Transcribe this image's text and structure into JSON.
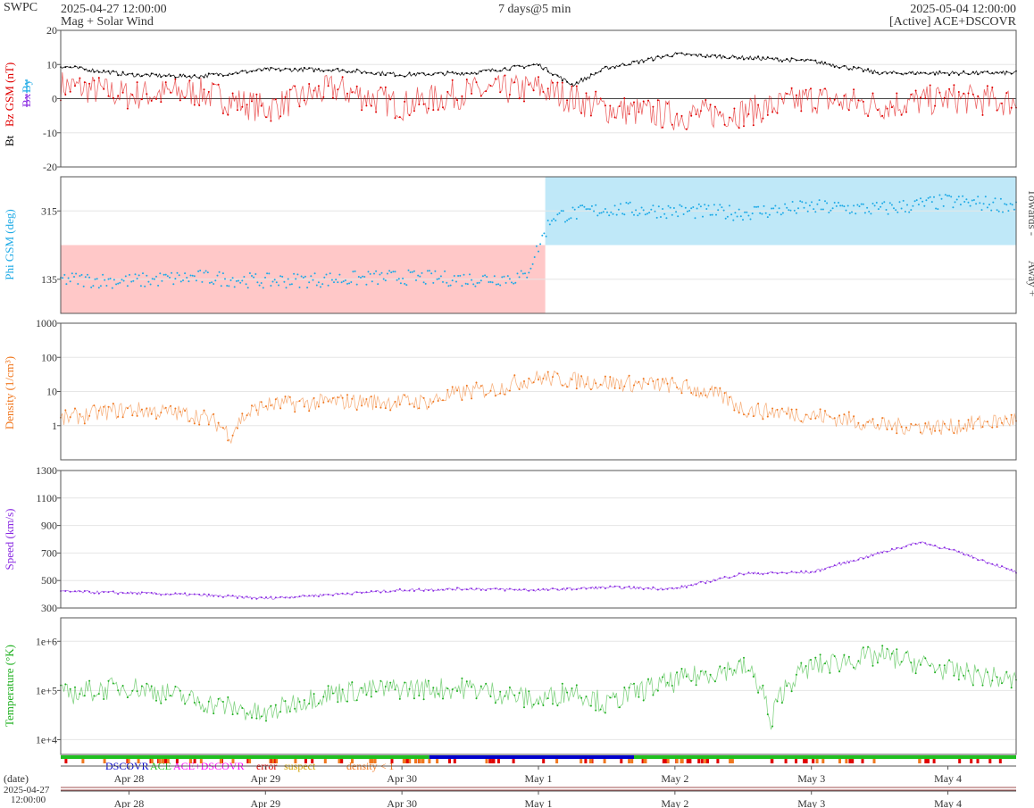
{
  "header": {
    "brand": "SWPC",
    "start_time": "2025-04-27 12:00:00",
    "subtitle": "Mag + Solar Wind",
    "span": "7 days@5 min",
    "end_time": "2025-05-04 12:00:00",
    "source": "[Active] ACE+DSCOVR"
  },
  "colors": {
    "bt": "#000000",
    "bz": "#e00000",
    "bx": "#8a2be2",
    "by": "#1eaae6",
    "phi": "#1eaae6",
    "density": "#f07820",
    "speed": "#8a2be2",
    "temperature": "#20b020",
    "away_fill": "#ffc8c8",
    "towards_fill": "#bfe8f8",
    "dscovr": "#0000cc",
    "ace": "#20c020",
    "ace_dscovr": "#ff00ff",
    "error": "#e00000",
    "suspect": "#f0c000",
    "density_lt1": "#f07820"
  },
  "chart_data": [
    {
      "id": "mag",
      "type": "line",
      "ylabel_parts": {
        "bt": "Bt",
        "bz": "Bz GSM (nT)",
        "bx": "Bx",
        "by": "By"
      },
      "ylim": [
        -20,
        20
      ],
      "yticks": [
        "20",
        "10",
        "0",
        "-10",
        "-20"
      ],
      "ytick_values": [
        20,
        10,
        0,
        -10,
        -20
      ],
      "x_days": [
        0,
        0.5,
        1,
        1.5,
        2,
        2.5,
        3,
        3.5,
        3.75,
        4,
        4.5,
        5,
        5.5,
        6,
        6.5,
        7
      ],
      "series": [
        {
          "name": "Bt",
          "values": [
            9.5,
            7,
            6.5,
            8.5,
            8.5,
            7,
            7.5,
            10,
            4,
            9,
            13,
            12,
            11,
            7.5,
            7.5,
            7.5
          ]
        },
        {
          "name": "Bz",
          "values": [
            4,
            1,
            2,
            -3,
            3,
            -2,
            2,
            3,
            0,
            -3,
            -5,
            -4,
            0,
            -2,
            0,
            -1
          ]
        }
      ]
    },
    {
      "id": "phi",
      "type": "scatter",
      "ylabel": "Phi GSM (deg)",
      "ylim": [
        45,
        405
      ],
      "yticks": [
        "315",
        "135"
      ],
      "ytick_values": [
        315,
        135
      ],
      "side_labels": {
        "towards": "Towards -",
        "away": "Away +"
      },
      "x_days": [
        0,
        0.5,
        1,
        1.5,
        2,
        2.5,
        3,
        3.4,
        3.6,
        4,
        4.5,
        5,
        5.5,
        6,
        6.5,
        7
      ],
      "values": [
        135,
        130,
        140,
        130,
        135,
        140,
        135,
        140,
        300,
        320,
        315,
        310,
        325,
        320,
        340,
        330
      ]
    },
    {
      "id": "density",
      "type": "line",
      "scale": "log",
      "ylabel": "Density (1/cm³)",
      "ylim": [
        0.1,
        1000
      ],
      "yticks": [
        "1000",
        "100",
        "10",
        "1"
      ],
      "ytick_values": [
        1000,
        100,
        10,
        1
      ],
      "x_days": [
        0,
        0.5,
        1,
        1.25,
        1.5,
        2,
        2.7,
        3,
        3.2,
        3.5,
        4,
        4.5,
        5,
        5.5,
        6,
        6.5,
        7
      ],
      "values": [
        1.5,
        3,
        2,
        0.5,
        4,
        5,
        5,
        10,
        12,
        25,
        18,
        15,
        3,
        2,
        1,
        0.9,
        1.5
      ]
    },
    {
      "id": "speed",
      "type": "line",
      "ylabel": "Speed (km/s)",
      "ylim": [
        300,
        1300
      ],
      "yticks": [
        "1300",
        "1100",
        "900",
        "700",
        "500",
        "300"
      ],
      "ytick_values": [
        1300,
        1100,
        900,
        700,
        500,
        300
      ],
      "x_days": [
        0,
        0.5,
        1,
        1.5,
        2,
        2.5,
        3,
        3.5,
        4,
        4.5,
        5,
        5.5,
        6,
        6.3,
        6.6,
        7
      ],
      "values": [
        420,
        410,
        395,
        370,
        400,
        430,
        440,
        430,
        450,
        440,
        550,
        560,
        700,
        780,
        700,
        560
      ]
    },
    {
      "id": "temperature",
      "type": "line",
      "scale": "log",
      "ylabel": "Temperature (°K)",
      "ylim": [
        5000,
        3000000
      ],
      "yticks": [
        "1e+6",
        "1e+5",
        "1e+4"
      ],
      "ytick_values": [
        1000000,
        100000,
        10000
      ],
      "x_days": [
        0,
        0.5,
        1,
        1.5,
        2,
        2.5,
        3,
        3.5,
        3.75,
        4,
        4.5,
        5,
        5.2,
        5.5,
        6,
        6.5,
        7
      ],
      "values": [
        80000,
        120000,
        60000,
        30000,
        90000,
        110000,
        110000,
        60000,
        100000,
        50000,
        150000,
        300000,
        10000,
        300000,
        500000,
        250000,
        150000
      ]
    }
  ],
  "legend": {
    "dscovr": "DSCOVR",
    "ace": "ACE",
    "ace_dscovr": "ACE+DSCOVR",
    "error": "error",
    "suspect": "suspect",
    "density_lt1": "density < 1"
  },
  "x_axis": {
    "labels": [
      "Apr 28",
      "Apr 29",
      "Apr 30",
      "May 1",
      "May 2",
      "May 3",
      "May 4"
    ],
    "label_days": [
      0.5,
      1.5,
      2.5,
      3.5,
      4.5,
      5.5,
      6.5
    ],
    "date_caption": "(date)",
    "start_date": "2025-04-27",
    "start_clock": "12:00:00"
  }
}
